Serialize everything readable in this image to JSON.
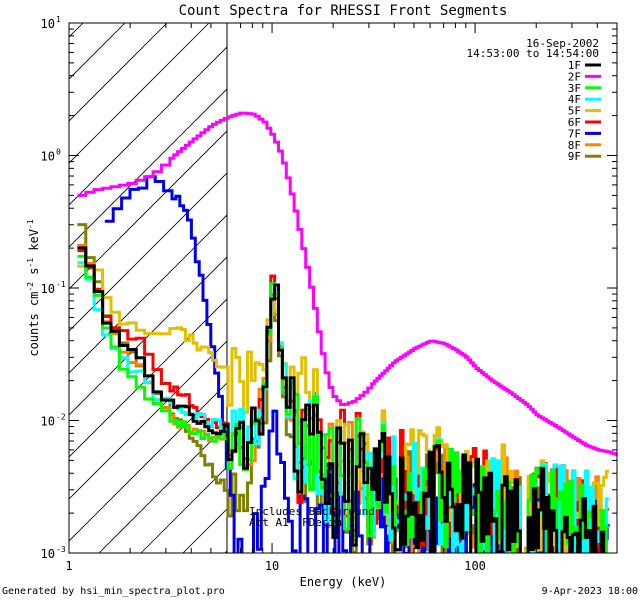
{
  "chart_data": {
    "type": "line",
    "title": "Count Spectra for RHESSI Front Segments",
    "xlabel": "Energy (keV)",
    "ylabel": "counts cm",
    "ylabel_sup1": "-2",
    "ylabel_mid": " s",
    "ylabel_sup2": "-1",
    "ylabel_end": " keV",
    "ylabel_sup3": "-1",
    "x_scale": "log",
    "y_scale": "log",
    "xlim": [
      1,
      500
    ],
    "ylim": [
      0.001,
      10
    ],
    "x_ticks": [
      {
        "value": 10,
        "label": "10"
      },
      {
        "value": 100,
        "label": "100"
      }
    ],
    "x_tick_1": "1",
    "y_ticks": [
      {
        "value": 0.001,
        "base": "10",
        "exp": "-3"
      },
      {
        "value": 0.01,
        "base": "10",
        "exp": "-2"
      },
      {
        "value": 0.1,
        "base": "10",
        "exp": "-1"
      },
      {
        "value": 1,
        "base": "10",
        "exp": "0"
      },
      {
        "value": 10,
        "base": "10",
        "exp": "1"
      }
    ],
    "date": "16-Sep-2002",
    "time_range": "14:53:00 to 14:54:00",
    "shaded_region_max_energy": 6,
    "annotation_line1": "Includes Background",
    "annotation_line2": "Att A1, FDecim 1",
    "legend_position": "top-right",
    "series": [
      {
        "name": "1F",
        "color": "#000000",
        "seed": 11,
        "values": [
          [
            1.1,
            0.22
          ],
          [
            1.3,
            0.11
          ],
          [
            1.5,
            0.052
          ],
          [
            1.7,
            0.039
          ],
          [
            1.9,
            0.035
          ],
          [
            2.1,
            0.032
          ],
          [
            2.5,
            0.018
          ],
          [
            3,
            0.014
          ],
          [
            3.5,
            0.013
          ],
          [
            4,
            0.011
          ],
          [
            5,
            0.008
          ],
          [
            6,
            0.009
          ],
          [
            7,
            0.0075
          ],
          [
            8,
            0.008
          ],
          [
            9,
            0.016
          ],
          [
            10,
            0.12
          ],
          [
            10.6,
            0.06
          ],
          [
            11.5,
            0.012
          ],
          [
            13,
            0.006
          ],
          [
            20,
            0.0035
          ],
          [
            30,
            0.003
          ],
          [
            50,
            0.0025
          ],
          [
            80,
            0.0022
          ],
          [
            120,
            0.0018
          ],
          [
            200,
            0.0016
          ],
          [
            300,
            0.0014
          ],
          [
            450,
            0.0012
          ]
        ]
      },
      {
        "name": "2F",
        "color": "#ff00ff",
        "seed": 22,
        "values": [
          [
            1.1,
            0.5
          ],
          [
            1.3,
            0.55
          ],
          [
            1.6,
            0.58
          ],
          [
            2,
            0.62
          ],
          [
            2.5,
            0.72
          ],
          [
            3,
            0.9
          ],
          [
            3.5,
            1.1
          ],
          [
            4,
            1.3
          ],
          [
            5,
            1.7
          ],
          [
            6,
            1.95
          ],
          [
            7,
            2.1
          ],
          [
            8,
            2.05
          ],
          [
            9,
            1.8
          ],
          [
            10,
            1.4
          ],
          [
            11,
            1.0
          ],
          [
            12,
            0.6
          ],
          [
            13,
            0.35
          ],
          [
            14,
            0.2
          ],
          [
            15,
            0.12
          ],
          [
            16,
            0.07
          ],
          [
            17,
            0.04
          ],
          [
            18,
            0.025
          ],
          [
            19,
            0.018
          ],
          [
            20,
            0.015
          ],
          [
            22,
            0.013
          ],
          [
            25,
            0.014
          ],
          [
            28,
            0.016
          ],
          [
            32,
            0.02
          ],
          [
            40,
            0.028
          ],
          [
            50,
            0.035
          ],
          [
            60,
            0.04
          ],
          [
            70,
            0.038
          ],
          [
            80,
            0.034
          ],
          [
            90,
            0.03
          ],
          [
            100,
            0.025
          ],
          [
            120,
            0.02
          ],
          [
            150,
            0.016
          ],
          [
            180,
            0.013
          ],
          [
            200,
            0.011
          ],
          [
            250,
            0.009
          ],
          [
            300,
            0.0075
          ],
          [
            350,
            0.0065
          ],
          [
            400,
            0.006
          ],
          [
            450,
            0.0058
          ],
          [
            500,
            0.0055
          ]
        ]
      },
      {
        "name": "3F",
        "color": "#00ff00",
        "seed": 33,
        "values": [
          [
            1.1,
            0.19
          ],
          [
            1.3,
            0.09
          ],
          [
            1.5,
            0.048
          ],
          [
            1.7,
            0.028
          ],
          [
            1.9,
            0.022
          ],
          [
            2.1,
            0.019
          ],
          [
            2.5,
            0.013
          ],
          [
            3,
            0.011
          ],
          [
            3.5,
            0.0095
          ],
          [
            4,
            0.0085
          ],
          [
            5,
            0.007
          ],
          [
            6,
            0.0075
          ],
          [
            7,
            0.007
          ],
          [
            8,
            0.008
          ],
          [
            9,
            0.015
          ],
          [
            10,
            0.11
          ],
          [
            10.6,
            0.06
          ],
          [
            11.5,
            0.013
          ],
          [
            13,
            0.007
          ],
          [
            20,
            0.004
          ],
          [
            30,
            0.0035
          ],
          [
            50,
            0.0028
          ],
          [
            80,
            0.0024
          ],
          [
            120,
            0.002
          ],
          [
            200,
            0.0017
          ],
          [
            300,
            0.0015
          ],
          [
            450,
            0.0013
          ]
        ]
      },
      {
        "name": "4F",
        "color": "#00ffff",
        "seed": 44,
        "values": [
          [
            1.1,
            0.17
          ],
          [
            1.3,
            0.08
          ],
          [
            1.5,
            0.042
          ],
          [
            1.7,
            0.031
          ],
          [
            1.9,
            0.026
          ],
          [
            2.1,
            0.023
          ],
          [
            2.5,
            0.016
          ],
          [
            3,
            0.013
          ],
          [
            3.5,
            0.012
          ],
          [
            4,
            0.011
          ],
          [
            5,
            0.0095
          ],
          [
            6,
            0.009
          ],
          [
            7,
            0.008
          ],
          [
            8,
            0.009
          ],
          [
            9,
            0.017
          ],
          [
            10,
            0.125
          ],
          [
            10.6,
            0.065
          ],
          [
            11.5,
            0.014
          ],
          [
            13,
            0.007
          ],
          [
            20,
            0.0042
          ],
          [
            30,
            0.0036
          ],
          [
            50,
            0.003
          ],
          [
            80,
            0.0025
          ],
          [
            120,
            0.0021
          ],
          [
            200,
            0.0018
          ],
          [
            300,
            0.0016
          ],
          [
            450,
            0.0014
          ]
        ]
      },
      {
        "name": "5F",
        "color": "#e0c000",
        "seed": 55,
        "values": [
          [
            1.1,
            0.16
          ],
          [
            1.3,
            0.15
          ],
          [
            1.5,
            0.08
          ],
          [
            1.7,
            0.06
          ],
          [
            1.9,
            0.055
          ],
          [
            2.1,
            0.05
          ],
          [
            2.5,
            0.045
          ],
          [
            3,
            0.05
          ],
          [
            3.5,
            0.046
          ],
          [
            4,
            0.04
          ],
          [
            5,
            0.03
          ],
          [
            6,
            0.022
          ],
          [
            7,
            0.018
          ],
          [
            8,
            0.022
          ],
          [
            9,
            0.03
          ],
          [
            10,
            0.09
          ],
          [
            10.6,
            0.05
          ],
          [
            11.5,
            0.02
          ],
          [
            13,
            0.012
          ],
          [
            20,
            0.006
          ],
          [
            30,
            0.0045
          ],
          [
            50,
            0.0038
          ],
          [
            80,
            0.003
          ],
          [
            120,
            0.0025
          ],
          [
            200,
            0.002
          ],
          [
            300,
            0.0017
          ],
          [
            450,
            0.0015
          ]
        ]
      },
      {
        "name": "6F",
        "color": "#ff0000",
        "seed": 66,
        "values": [
          [
            1.1,
            0.21
          ],
          [
            1.3,
            0.1
          ],
          [
            1.5,
            0.058
          ],
          [
            1.7,
            0.05
          ],
          [
            1.9,
            0.045
          ],
          [
            2.1,
            0.042
          ],
          [
            2.5,
            0.025
          ],
          [
            3,
            0.018
          ],
          [
            3.5,
            0.016
          ],
          [
            4,
            0.013
          ],
          [
            5,
            0.009
          ],
          [
            6,
            0.009
          ],
          [
            7,
            0.008
          ],
          [
            8,
            0.009
          ],
          [
            9,
            0.016
          ],
          [
            10,
            0.13
          ],
          [
            10.6,
            0.06
          ],
          [
            11.5,
            0.013
          ],
          [
            13,
            0.007
          ],
          [
            20,
            0.0045
          ],
          [
            30,
            0.0038
          ],
          [
            50,
            0.003
          ],
          [
            80,
            0.0026
          ],
          [
            120,
            0.0022
          ],
          [
            200,
            0.0019
          ],
          [
            300,
            0.0016
          ],
          [
            450,
            0.0014
          ]
        ]
      },
      {
        "name": "7F",
        "color": "#0000ee",
        "seed": 77,
        "values": [
          [
            1.5,
            0.35
          ],
          [
            1.7,
            0.45
          ],
          [
            1.9,
            0.55
          ],
          [
            2.1,
            0.6
          ],
          [
            2.3,
            0.64
          ],
          [
            2.5,
            0.65
          ],
          [
            2.8,
            0.6
          ],
          [
            3.1,
            0.52
          ],
          [
            3.5,
            0.42
          ],
          [
            3.9,
            0.28
          ],
          [
            4.3,
            0.14
          ],
          [
            4.7,
            0.06
          ],
          [
            5.1,
            0.03
          ],
          [
            5.5,
            0.015
          ],
          [
            6,
            0.004
          ],
          [
            6.5,
            0.0012
          ],
          [
            7.5,
            0.0011
          ],
          [
            8,
            0.001
          ],
          [
            9,
            0.003
          ],
          [
            10,
            0.012
          ],
          [
            10.6,
            0.006
          ],
          [
            11.5,
            0.003
          ],
          [
            13,
            0.002
          ],
          [
            20,
            0.0016
          ],
          [
            30,
            0.0014
          ],
          [
            50,
            0.0013
          ],
          [
            80,
            0.0012
          ],
          [
            120,
            0.0012
          ],
          [
            200,
            0.0011
          ],
          [
            300,
            0.0011
          ],
          [
            450,
            0.001
          ]
        ]
      },
      {
        "name": "8F",
        "color": "#ff8000",
        "seed": 88,
        "values": [
          [
            1.1,
            0.23
          ],
          [
            1.3,
            0.11
          ],
          [
            1.5,
            0.05
          ],
          [
            1.7,
            0.037
          ],
          [
            1.9,
            0.03
          ],
          [
            2.1,
            0.027
          ],
          [
            2.5,
            0.015
          ],
          [
            3,
            0.011
          ],
          [
            3.5,
            0.0095
          ],
          [
            4,
            0.0085
          ],
          [
            5,
            0.007
          ],
          [
            6,
            0.0075
          ],
          [
            7,
            0.007
          ],
          [
            8,
            0.008
          ],
          [
            9,
            0.016
          ],
          [
            10,
            0.1
          ],
          [
            10.6,
            0.055
          ],
          [
            11.5,
            0.012
          ],
          [
            13,
            0.006
          ],
          [
            20,
            0.0037
          ],
          [
            30,
            0.0032
          ],
          [
            50,
            0.0027
          ],
          [
            80,
            0.0023
          ],
          [
            120,
            0.002
          ],
          [
            200,
            0.0017
          ],
          [
            300,
            0.0015
          ],
          [
            450,
            0.0013
          ]
        ]
      },
      {
        "name": "9F",
        "color": "#808000",
        "seed": 99,
        "values": [
          [
            1.1,
            0.33
          ],
          [
            1.3,
            0.12
          ],
          [
            1.5,
            0.055
          ],
          [
            1.7,
            0.04
          ],
          [
            1.9,
            0.033
          ],
          [
            2.1,
            0.029
          ],
          [
            2.5,
            0.017
          ],
          [
            3,
            0.012
          ],
          [
            3.5,
            0.01
          ],
          [
            4,
            0.007
          ],
          [
            5,
            0.004
          ],
          [
            6,
            0.003
          ],
          [
            7,
            0.003
          ],
          [
            8,
            0.004
          ],
          [
            9,
            0.009
          ],
          [
            10,
            0.1
          ],
          [
            10.6,
            0.05
          ],
          [
            11.5,
            0.01
          ],
          [
            13,
            0.005
          ],
          [
            20,
            0.003
          ],
          [
            30,
            0.0026
          ],
          [
            50,
            0.0022
          ],
          [
            80,
            0.002
          ],
          [
            120,
            0.0017
          ],
          [
            200,
            0.0015
          ],
          [
            300,
            0.0013
          ],
          [
            450,
            0.0012
          ]
        ]
      }
    ]
  },
  "footer": {
    "generated_by": "Generated by hsi_min_spectra_plot.pro",
    "timestamp": "9-Apr-2023 18:00"
  }
}
